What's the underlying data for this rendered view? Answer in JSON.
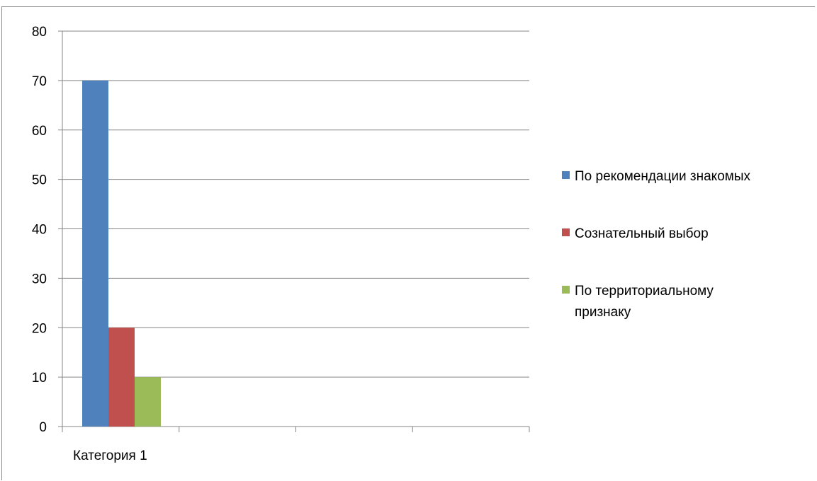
{
  "chart_data": {
    "type": "bar",
    "title": "",
    "xlabel": "",
    "ylabel": "",
    "categories": [
      "Категория 1"
    ],
    "category_slots": 4,
    "series": [
      {
        "name": "По рекомендации знакомых",
        "name_lines": [
          "По рекомендации знакомых"
        ],
        "values": [
          70
        ],
        "color": "#4F81BD"
      },
      {
        "name": "Сознательный выбор",
        "name_lines": [
          "Сознательный выбор"
        ],
        "values": [
          20
        ],
        "color": "#C0504D"
      },
      {
        "name": "По территориальному признаку",
        "name_lines": [
          "По территориальному",
          "признаку"
        ],
        "values": [
          10
        ],
        "color": "#9BBB59"
      }
    ],
    "ylim": [
      0,
      80
    ],
    "yticks": [
      0,
      10,
      20,
      30,
      40,
      50,
      60,
      70,
      80
    ],
    "grid": true,
    "legend_position": "right"
  }
}
